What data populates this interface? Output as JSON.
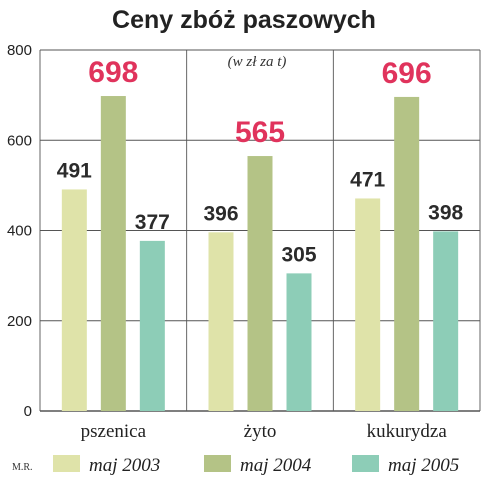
{
  "credit": "M.R.",
  "colors": {
    "maj_2003": "#dfe3a9",
    "maj_2004": "#b4c386",
    "maj_2005": "#8dcdb7",
    "highlight": "#e0335c",
    "grid": "#555555"
  },
  "chart_data": {
    "type": "bar",
    "title": "Ceny zbóż paszowych",
    "unit_note": "(w zł za t)",
    "categories": [
      "pszenica",
      "żyto",
      "kukurydza"
    ],
    "series": [
      {
        "name": "maj 2003",
        "values": [
          491,
          396,
          471
        ]
      },
      {
        "name": "maj 2004",
        "values": [
          698,
          565,
          696
        ]
      },
      {
        "name": "maj 2005",
        "values": [
          377,
          305,
          398
        ]
      }
    ],
    "ylim": [
      0,
      800
    ],
    "yticks": [
      "0",
      "200",
      "400",
      "600",
      "800"
    ],
    "grid": true,
    "legend_position": "bottom",
    "highlight_series": "maj 2004"
  }
}
